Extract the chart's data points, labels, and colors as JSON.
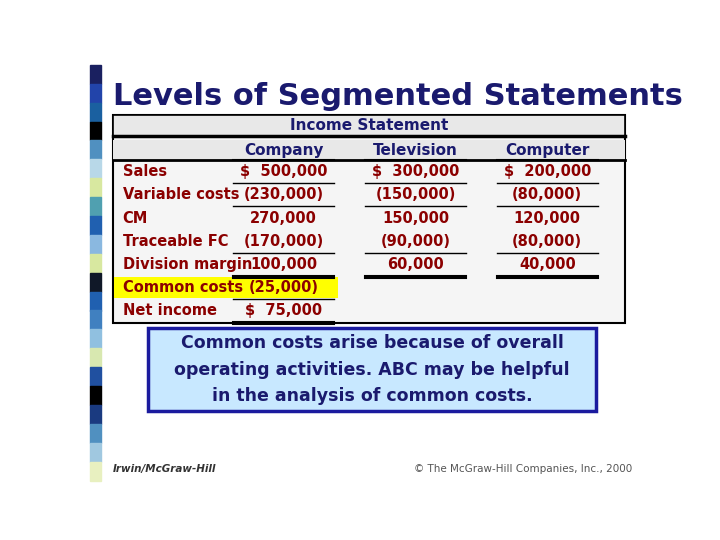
{
  "title": "Levels of Segmented Statements",
  "title_color": "#1a1a6e",
  "title_fontsize": 22,
  "bg_color": "#ffffff",
  "sidebar_colors": [
    "#1a2060",
    "#2244aa",
    "#1a60a0",
    "#000000",
    "#5090c0",
    "#b8d8e8",
    "#d8e8a0",
    "#50a0b0",
    "#2060b0",
    "#8ab8e0",
    "#d8e8a0",
    "#101828",
    "#2060b0",
    "#4080c0",
    "#90c0e0",
    "#d8e8b0",
    "#2050a0",
    "#000000",
    "#1a3a80",
    "#5090c0",
    "#a0c8e0",
    "#e8f0c0"
  ],
  "table_header": "Income Statement",
  "col_headers": [
    "",
    "Company",
    "Television",
    "Computer"
  ],
  "rows": [
    {
      "label": "Sales",
      "company": "$  500,000",
      "television": "$  300,000",
      "computer": "$  200,000",
      "highlight": false
    },
    {
      "label": "Variable costs",
      "company": "(230,000)",
      "television": "(150,000)",
      "computer": "(80,000)",
      "highlight": false
    },
    {
      "label": "CM",
      "company": "270,000",
      "television": "150,000",
      "computer": "120,000",
      "highlight": false
    },
    {
      "label": "Traceable FC",
      "company": "(170,000)",
      "television": "(90,000)",
      "computer": "(80,000)",
      "highlight": false
    },
    {
      "label": "Division margin",
      "company": "100,000",
      "television": "60,000",
      "computer": "40,000",
      "highlight": false
    },
    {
      "label": "Common costs",
      "company": "(25,000)",
      "television": "",
      "computer": "",
      "highlight": true
    },
    {
      "label": "Net income",
      "company": "$  75,000",
      "television": "",
      "computer": "",
      "highlight": false
    }
  ],
  "label_color": "#8b0000",
  "value_color": "#8b0000",
  "header_color": "#1a1a6e",
  "highlight_bg": "#ffff00",
  "table_border_color": "#000000",
  "note_text": "Common costs arise because of overall\noperating activities. ABC may be helpful\nin the analysis of common costs.",
  "note_color": "#1a1a6e",
  "note_border": "#1a1a9e",
  "note_bg": "#c8e8ff",
  "footer_left": "Irwin/McGraw-Hill",
  "footer_right": "© The McGraw-Hill Companies, Inc., 2000"
}
